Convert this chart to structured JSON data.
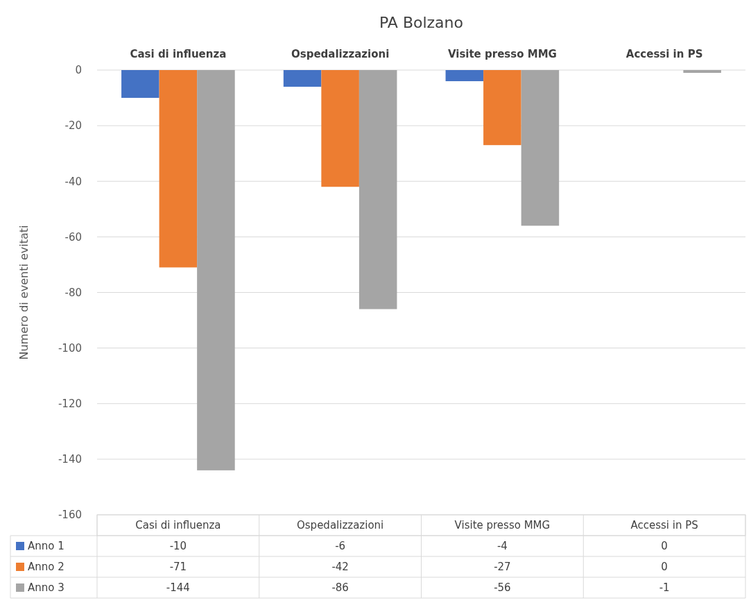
{
  "chart_data": {
    "type": "bar",
    "title": "PA Bolzano",
    "ylabel": "Numero di eventi evitati",
    "categories": [
      "Casi di influenza",
      "Ospedalizzazioni",
      "Visite presso MMG",
      "Accessi in PS"
    ],
    "series": [
      {
        "name": "Anno 1",
        "color": "#4472c4",
        "values": [
          -10,
          -6,
          -4,
          0
        ]
      },
      {
        "name": "Anno 2",
        "color": "#ed7d31",
        "values": [
          -71,
          -42,
          -27,
          0
        ]
      },
      {
        "name": "Anno 3",
        "color": "#a5a5a5",
        "values": [
          -144,
          -86,
          -56,
          -1
        ]
      }
    ],
    "ylim": [
      -160,
      0
    ],
    "yticks": [
      -160,
      -140,
      -120,
      -100,
      -80,
      -60,
      -40,
      -20,
      0
    ],
    "grid": "y",
    "legend": "bottom",
    "data_labels": true
  }
}
